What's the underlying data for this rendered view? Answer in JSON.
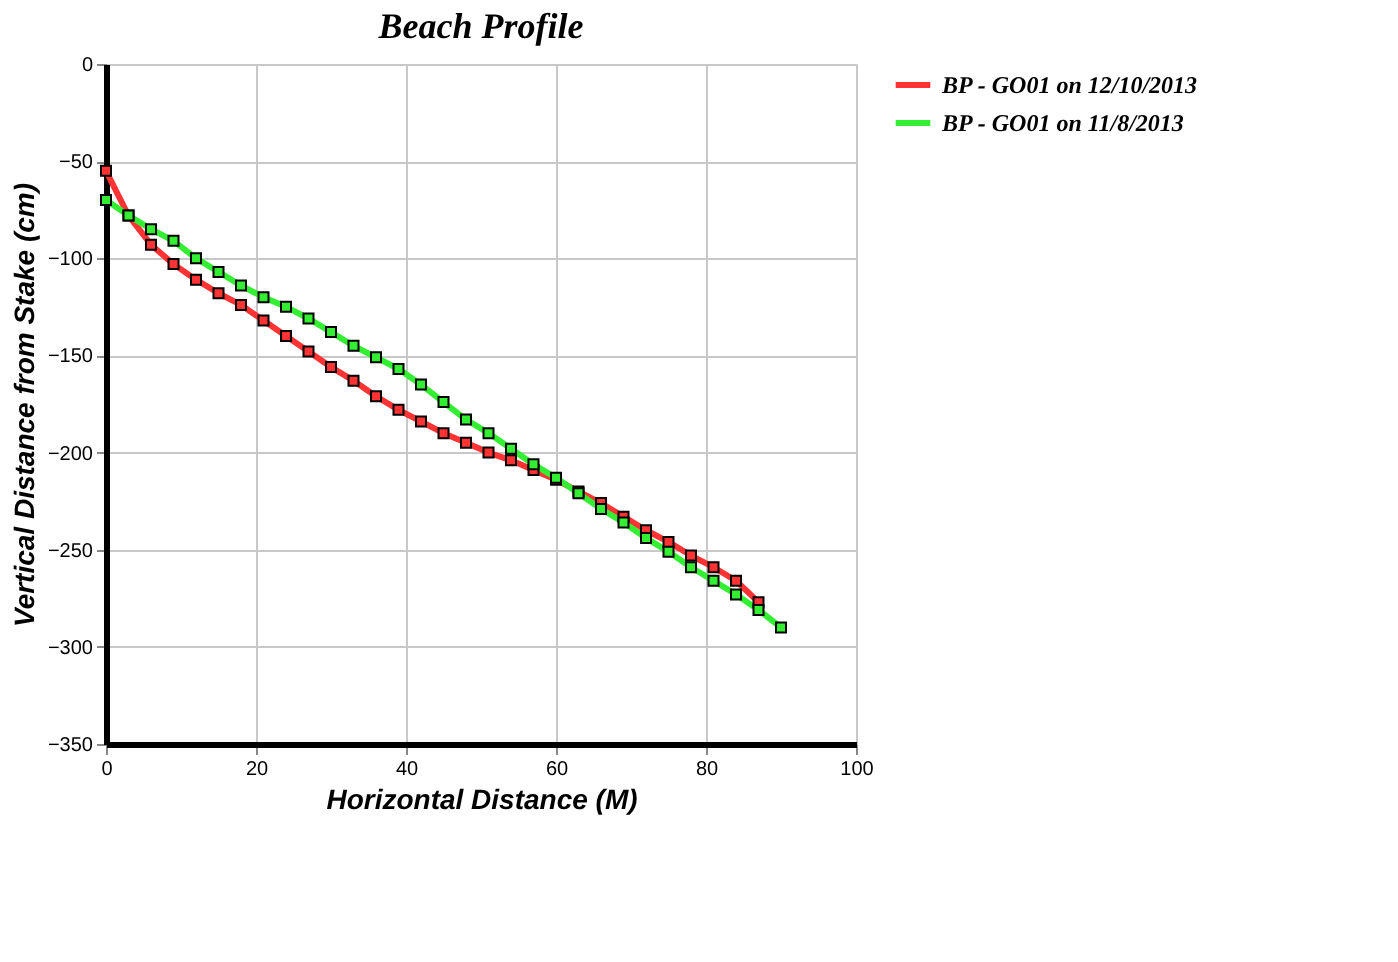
{
  "chart_data": {
    "type": "line",
    "title": "Beach Profile",
    "xlabel": "Horizontal Distance (M)",
    "ylabel": "Vertical Distance from Stake (cm)",
    "xlim": [
      0,
      100
    ],
    "xticks": [
      0,
      20,
      40,
      60,
      80,
      100
    ],
    "ylim": [
      -350,
      0
    ],
    "yticks": [
      -350,
      -300,
      -250,
      -200,
      -150,
      -100,
      -50,
      0
    ],
    "grid": true,
    "legend": "top right",
    "marker": "square",
    "line_style": "solid",
    "series": [
      {
        "name": "BP - GO01 on 12/10/2013",
        "color": "#ff3333",
        "x": [
          0,
          3,
          6,
          9,
          12,
          15,
          18,
          21,
          24,
          27,
          30,
          33,
          36,
          39,
          42,
          45,
          48,
          51,
          54,
          57,
          60,
          63,
          66,
          69,
          72,
          75,
          78,
          81,
          84,
          87
        ],
        "values": [
          -55,
          -78,
          -93,
          -103,
          -111,
          -118,
          -124,
          -132,
          -140,
          -148,
          -156,
          -163,
          -171,
          -178,
          -184,
          -190,
          -195,
          -200,
          -204,
          -209,
          -214,
          -220,
          -226,
          -233,
          -240,
          -246,
          -253,
          -259,
          -266,
          -277
        ]
      },
      {
        "name": "BP - GO01 on 11/8/2013",
        "color": "#33ee33",
        "x": [
          0,
          3,
          6,
          9,
          12,
          15,
          18,
          21,
          24,
          27,
          30,
          33,
          36,
          39,
          42,
          45,
          48,
          51,
          54,
          57,
          60,
          63,
          66,
          69,
          72,
          75,
          78,
          81,
          84,
          87,
          90
        ],
        "values": [
          -70,
          -78,
          -85,
          -91,
          -100,
          -107,
          -114,
          -120,
          -125,
          -131,
          -138,
          -145,
          -151,
          -157,
          -165,
          -174,
          -183,
          -190,
          -198,
          -206,
          -213,
          -221,
          -229,
          -236,
          -244,
          -251,
          -259,
          -266,
          -273,
          -281,
          -290
        ]
      }
    ]
  }
}
